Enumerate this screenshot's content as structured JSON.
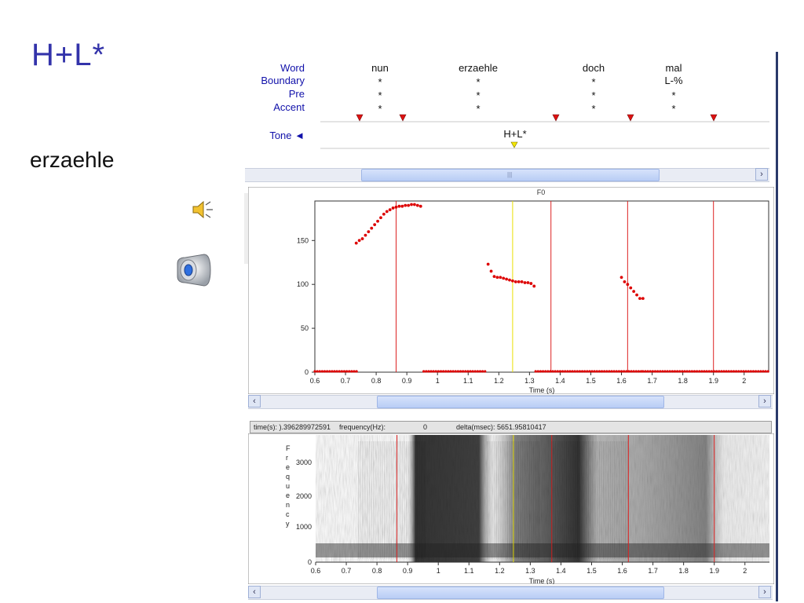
{
  "slide": {
    "title": "H+L*",
    "word": "erzaehle"
  },
  "icons": [
    "speaker-small-icon",
    "speaker-large-icon"
  ],
  "tiers": {
    "labels": {
      "word": "Word",
      "boundary": "Boundary",
      "pre": "Pre",
      "accent": "Accent",
      "tone": "Tone ◄"
    },
    "words": [
      {
        "word": "nun",
        "boundary": "*",
        "pre": "*",
        "accent": "*"
      },
      {
        "word": "erzaehle",
        "boundary": "*",
        "pre": "*",
        "accent": "*"
      },
      {
        "word": "doch",
        "boundary": "*",
        "pre": "*",
        "accent": "*"
      },
      {
        "word": "mal",
        "boundary": "L-%",
        "pre": "*",
        "accent": "*"
      }
    ],
    "tone_label": "H+L*"
  },
  "f0_panel": {
    "title": "F0",
    "xlabel": "Time (s)"
  },
  "status": {
    "time": "time(s): ).396289972591",
    "frequency": "frequency(Hz):",
    "frequency_value": "0",
    "delta": "delta(msec): 5651.95810417"
  },
  "spectrogram": {
    "ylabel": "Frequency",
    "xlabel": "Time (s)",
    "y_ticks": [
      "0",
      "1000",
      "2000",
      "3000"
    ]
  },
  "chart_data": {
    "type": "scatter",
    "title": "F0",
    "xlabel": "Time (s)",
    "ylabel": "",
    "xlim": [
      0.6,
      2.08
    ],
    "ylim": [
      0,
      195
    ],
    "x_ticks": [
      "0.6",
      "0.7",
      "0.8",
      "0.9",
      "1",
      "1.1",
      "1.2",
      "1.3",
      "1.4",
      "1.5",
      "1.6",
      "1.7",
      "1.8",
      "1.9",
      "2"
    ],
    "y_ticks": [
      "0",
      "50",
      "100",
      "150"
    ],
    "marker_lines": {
      "red": [
        0.865,
        1.37,
        1.62,
        1.9
      ],
      "yellow": [
        1.245
      ]
    },
    "series": [
      {
        "name": "",
        "color": "#dd0000",
        "x": [
          0.735,
          0.745,
          0.755,
          0.765,
          0.775,
          0.785,
          0.795,
          0.805,
          0.815,
          0.825,
          0.835,
          0.845,
          0.855,
          0.865,
          0.875,
          0.885,
          0.895,
          0.905,
          0.915,
          0.925,
          0.935,
          0.945
        ],
        "y": [
          147,
          150,
          152,
          156,
          160,
          164,
          168,
          172,
          176,
          180,
          183,
          185,
          187,
          188,
          189,
          189,
          190,
          190,
          191,
          191,
          190,
          189
        ]
      },
      {
        "name": "",
        "color": "#dd0000",
        "x": [
          1.165,
          1.175,
          1.185,
          1.195,
          1.205,
          1.215,
          1.225,
          1.235,
          1.245,
          1.255,
          1.265,
          1.275,
          1.285,
          1.295,
          1.305,
          1.315
        ],
        "y": [
          123,
          115,
          109,
          108,
          108,
          107,
          106,
          105,
          104,
          103,
          103,
          103,
          102,
          102,
          101,
          98
        ]
      },
      {
        "name": "",
        "color": "#dd0000",
        "x": [
          1.6,
          1.61,
          1.62,
          1.63,
          1.64,
          1.65,
          1.66,
          1.67
        ],
        "y": [
          108,
          103,
          100,
          96,
          92,
          88,
          84,
          84
        ]
      }
    ],
    "zero_segments": [
      [
        0.6,
        0.74
      ],
      [
        0.955,
        1.16
      ],
      [
        1.32,
        1.67
      ],
      [
        1.67,
        2.08
      ]
    ]
  }
}
